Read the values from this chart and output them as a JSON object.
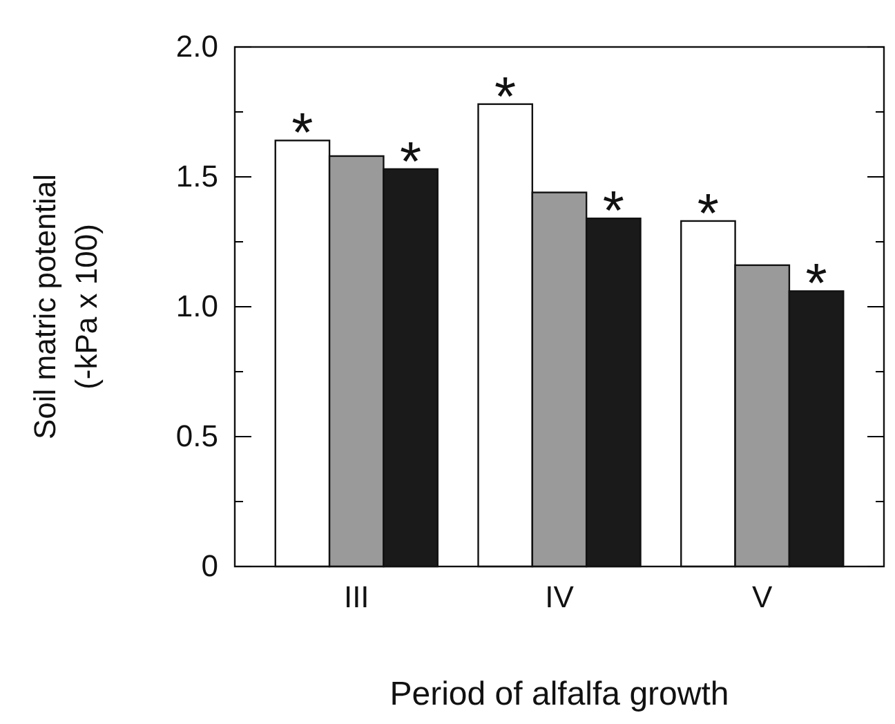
{
  "chart_data": {
    "type": "bar",
    "xlabel": "Period of alfalfa growth",
    "ylabel": "Soil matric potential\n(-kPa x 100)",
    "categories": [
      "III",
      "IV",
      "V"
    ],
    "series": [
      {
        "color": "#ffffff",
        "values": [
          1.64,
          1.78,
          1.33
        ]
      },
      {
        "color": "#9a9a9a",
        "values": [
          1.58,
          1.44,
          1.16
        ]
      },
      {
        "color": "#1a1a1a",
        "values": [
          1.53,
          1.34,
          1.06
        ]
      }
    ],
    "ylim": [
      0,
      2.0
    ],
    "yticks": [
      {
        "value": 0,
        "label": "0"
      },
      {
        "value": 0.25,
        "label": null
      },
      {
        "value": 0.5,
        "label": "0.5"
      },
      {
        "value": 0.75,
        "label": null
      },
      {
        "value": 1,
        "label": "1.0"
      },
      {
        "value": 1.25,
        "label": null
      },
      {
        "value": 1.5,
        "label": "1.5"
      },
      {
        "value": 1.75,
        "label": null
      },
      {
        "value": 2,
        "label": "2.0"
      }
    ],
    "annotations": [
      "*",
      "*",
      "*",
      "*",
      "*",
      "*"
    ],
    "grid": false
  }
}
